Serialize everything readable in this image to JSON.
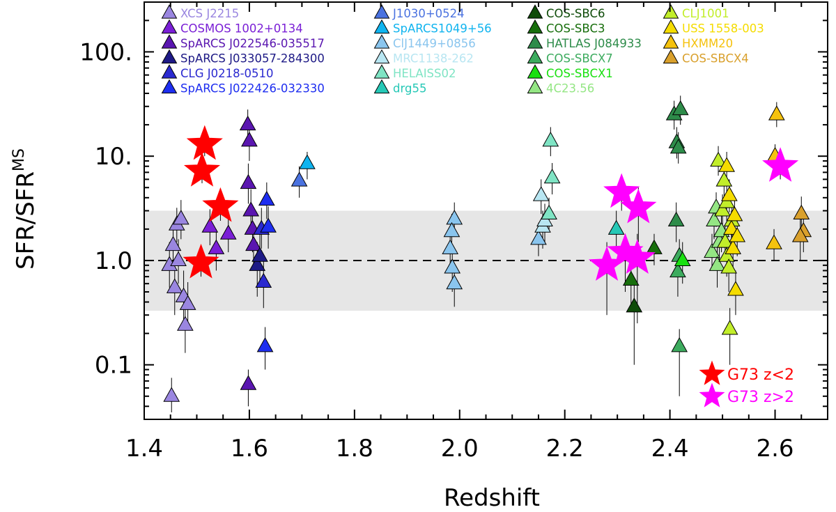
{
  "chart_data": {
    "type": "scatter",
    "xlabel": "Redshift",
    "ylabel": "SFR/SFR",
    "ylabel_sup": "MS",
    "xlim": [
      1.4,
      2.7
    ],
    "ylim": [
      0.03,
      300
    ],
    "yscale": "log",
    "xticks": [
      1.4,
      1.6,
      1.8,
      2.0,
      2.2,
      2.4,
      2.6
    ],
    "xtick_labels": [
      "1.4",
      "1.6",
      "1.8",
      "2.0",
      "2.2",
      "2.4",
      "2.6"
    ],
    "yticks": [
      0.1,
      1.0,
      10,
      100
    ],
    "ytick_labels": [
      "0.1",
      "1.0",
      "10.",
      "100."
    ],
    "reference_line": {
      "y": 1.0,
      "style": "dashed"
    },
    "shaded_band": {
      "y_min": 0.33,
      "y_max": 3.0,
      "color": "#e6e6e6"
    },
    "series": [
      {
        "name": "XCS J2215",
        "color": "#9a86e0",
        "points": [
          {
            "x": 1.452,
            "y": 0.05,
            "lo": 0.035,
            "hi": 0.075
          },
          {
            "x": 1.448,
            "y": 0.9,
            "lo": 0.55,
            "hi": 1.5
          },
          {
            "x": 1.455,
            "y": 1.4,
            "lo": 0.9,
            "hi": 2.2
          },
          {
            "x": 1.458,
            "y": 0.55,
            "lo": 0.3,
            "hi": 0.85
          },
          {
            "x": 1.462,
            "y": 2.2,
            "lo": 1.5,
            "hi": 3.2
          },
          {
            "x": 1.465,
            "y": 1.0,
            "lo": 0.6,
            "hi": 1.6
          },
          {
            "x": 1.47,
            "y": 2.5,
            "lo": 1.6,
            "hi": 3.8
          },
          {
            "x": 1.475,
            "y": 0.45,
            "lo": 0.25,
            "hi": 0.8
          },
          {
            "x": 1.478,
            "y": 0.24,
            "lo": 0.13,
            "hi": 0.4
          },
          {
            "x": 1.483,
            "y": 0.38,
            "lo": 0.22,
            "hi": 0.62
          }
        ]
      },
      {
        "name": "COSMOS 1002+0134",
        "color": "#7a1fd6",
        "points": [
          {
            "x": 1.525,
            "y": 2.1,
            "lo": 1.4,
            "hi": 3.1
          },
          {
            "x": 1.537,
            "y": 1.3,
            "lo": 0.8,
            "hi": 2.0
          },
          {
            "x": 1.56,
            "y": 1.8,
            "lo": 1.2,
            "hi": 2.6
          }
        ]
      },
      {
        "name": "SpARCS J022546-035517",
        "color": "#5a16b0",
        "points": [
          {
            "x": 1.597,
            "y": 20.0,
            "lo": 14.0,
            "hi": 28.0
          },
          {
            "x": 1.6,
            "y": 14.0,
            "lo": 9.0,
            "hi": 20.0
          },
          {
            "x": 1.598,
            "y": 5.5,
            "lo": 3.5,
            "hi": 8.5
          },
          {
            "x": 1.603,
            "y": 3.0,
            "lo": 1.8,
            "hi": 4.8
          },
          {
            "x": 1.606,
            "y": 2.0,
            "lo": 1.2,
            "hi": 3.0
          },
          {
            "x": 1.608,
            "y": 1.4,
            "lo": 0.9,
            "hi": 2.3
          },
          {
            "x": 1.598,
            "y": 0.065,
            "lo": 0.04,
            "hi": 0.09
          }
        ]
      },
      {
        "name": "SpARCS J033057-284300",
        "color": "#1e1a86",
        "points": [
          {
            "x": 1.615,
            "y": 0.9,
            "lo": 0.45,
            "hi": 1.5
          },
          {
            "x": 1.62,
            "y": 1.1,
            "lo": 0.6,
            "hi": 1.8
          }
        ]
      },
      {
        "name": "CLG J0218-0510",
        "color": "#2b2ad0",
        "points": [
          {
            "x": 1.623,
            "y": 2.0,
            "lo": 1.3,
            "hi": 3.2
          },
          {
            "x": 1.627,
            "y": 0.62,
            "lo": 0.35,
            "hi": 1.0
          }
        ]
      },
      {
        "name": "SpARCS J022426-032330",
        "color": "#1e2ef0",
        "points": [
          {
            "x": 1.633,
            "y": 3.8,
            "lo": 2.5,
            "hi": 5.6
          },
          {
            "x": 1.636,
            "y": 2.1,
            "lo": 1.3,
            "hi": 3.3
          },
          {
            "x": 1.63,
            "y": 0.15,
            "lo": 0.09,
            "hi": 0.23
          }
        ]
      },
      {
        "name": "J1030+0524",
        "color": "#4a72e0",
        "points": [
          {
            "x": 1.695,
            "y": 5.8,
            "lo": 4.0,
            "hi": 8.0
          }
        ]
      },
      {
        "name": "SpARCS1049+56",
        "color": "#10b4ef",
        "points": [
          {
            "x": 1.71,
            "y": 8.5,
            "lo": 6.0,
            "hi": 11.0
          }
        ]
      },
      {
        "name": "ClJ1449+0856",
        "color": "#8ac5ee",
        "points": [
          {
            "x": 1.99,
            "y": 2.5,
            "lo": 1.7,
            "hi": 3.6
          },
          {
            "x": 1.985,
            "y": 1.9,
            "lo": 1.2,
            "hi": 2.8
          },
          {
            "x": 1.982,
            "y": 1.3,
            "lo": 0.8,
            "hi": 2.0
          },
          {
            "x": 1.986,
            "y": 0.85,
            "lo": 0.5,
            "hi": 1.3
          },
          {
            "x": 1.99,
            "y": 0.6,
            "lo": 0.36,
            "hi": 0.95
          },
          {
            "x": 2.15,
            "y": 1.6,
            "lo": 1.1,
            "hi": 2.3
          }
        ]
      },
      {
        "name": "MRC1138-262",
        "color": "#b8e6f2",
        "points": [
          {
            "x": 2.155,
            "y": 4.2,
            "lo": 2.8,
            "hi": 6.0
          },
          {
            "x": 2.158,
            "y": 2.1,
            "lo": 1.3,
            "hi": 3.0
          },
          {
            "x": 2.162,
            "y": 2.4,
            "lo": 1.5,
            "hi": 3.5
          }
        ]
      },
      {
        "name": "HELAISS02",
        "color": "#7fe4c4",
        "points": [
          {
            "x": 2.17,
            "y": 2.8,
            "lo": 1.9,
            "hi": 4.0
          },
          {
            "x": 2.173,
            "y": 14.0,
            "lo": 10.0,
            "hi": 19.0
          },
          {
            "x": 2.176,
            "y": 6.2,
            "lo": 4.3,
            "hi": 8.6
          }
        ]
      },
      {
        "name": "drg55",
        "color": "#26c8b6",
        "points": [
          {
            "x": 2.298,
            "y": 2.0,
            "lo": 1.3,
            "hi": 3.0
          }
        ]
      },
      {
        "name": "COS-SBC6",
        "color": "#0e4b08",
        "points": [
          {
            "x": 2.332,
            "y": 0.36,
            "lo": 0.1,
            "hi": 0.6
          }
        ]
      },
      {
        "name": "COS-SBC3",
        "color": "#176e0c",
        "points": [
          {
            "x": 2.326,
            "y": 0.65,
            "lo": 0.35,
            "hi": 1.0
          },
          {
            "x": 2.37,
            "y": 1.3,
            "lo": 0.9,
            "hi": 1.8
          }
        ]
      },
      {
        "name": "HATLAS J084933",
        "color": "#2e8c4a",
        "points": [
          {
            "x": 2.408,
            "y": 25.0,
            "lo": 18.0,
            "hi": 34.0
          },
          {
            "x": 2.413,
            "y": 13.5,
            "lo": 9.5,
            "hi": 19.0
          },
          {
            "x": 2.416,
            "y": 12.0,
            "lo": 8.5,
            "hi": 17.0
          },
          {
            "x": 2.42,
            "y": 28.0,
            "lo": 20.0,
            "hi": 38.0
          },
          {
            "x": 2.412,
            "y": 2.4,
            "lo": 1.5,
            "hi": 3.6
          }
        ]
      },
      {
        "name": "COS-SBCX7",
        "color": "#3cab5e",
        "points": [
          {
            "x": 2.415,
            "y": 0.78,
            "lo": 0.45,
            "hi": 1.2
          },
          {
            "x": 2.418,
            "y": 1.1,
            "lo": 0.7,
            "hi": 1.6
          },
          {
            "x": 2.418,
            "y": 0.15,
            "lo": 0.05,
            "hi": 0.22
          }
        ]
      },
      {
        "name": "COS-SBCX1",
        "color": "#19e010",
        "points": [
          {
            "x": 2.424,
            "y": 1.0,
            "lo": 0.6,
            "hi": 1.5
          }
        ]
      },
      {
        "name": "4C23.56",
        "color": "#94e684",
        "points": [
          {
            "x": 2.48,
            "y": 1.2,
            "lo": 0.8,
            "hi": 1.8
          },
          {
            "x": 2.484,
            "y": 2.4,
            "lo": 1.6,
            "hi": 3.4
          },
          {
            "x": 2.49,
            "y": 0.9,
            "lo": 0.55,
            "hi": 1.4
          },
          {
            "x": 2.488,
            "y": 3.2,
            "lo": 2.1,
            "hi": 4.5
          },
          {
            "x": 2.494,
            "y": 1.5,
            "lo": 1.0,
            "hi": 2.2
          },
          {
            "x": 2.498,
            "y": 1.9,
            "lo": 1.2,
            "hi": 2.8
          }
        ]
      },
      {
        "name": "CLJ1001",
        "color": "#c2ee2a",
        "points": [
          {
            "x": 2.492,
            "y": 9.0,
            "lo": 6.5,
            "hi": 12.5
          },
          {
            "x": 2.5,
            "y": 3.0,
            "lo": 2.0,
            "hi": 4.3
          },
          {
            "x": 2.505,
            "y": 1.5,
            "lo": 1.0,
            "hi": 2.2
          },
          {
            "x": 2.508,
            "y": 1.1,
            "lo": 0.7,
            "hi": 1.6
          },
          {
            "x": 2.512,
            "y": 0.85,
            "lo": 0.5,
            "hi": 1.3
          },
          {
            "x": 2.514,
            "y": 0.22,
            "lo": 0.1,
            "hi": 0.35
          },
          {
            "x": 2.518,
            "y": 2.4,
            "lo": 1.6,
            "hi": 3.5
          },
          {
            "x": 2.503,
            "y": 5.8,
            "lo": 4.0,
            "hi": 8.0
          },
          {
            "x": 2.508,
            "y": 3.6,
            "lo": 2.4,
            "hi": 5.2
          }
        ]
      },
      {
        "name": "USS 1558-003",
        "color": "#f5dc00",
        "points": [
          {
            "x": 2.508,
            "y": 8.0,
            "lo": 5.8,
            "hi": 11.0
          },
          {
            "x": 2.513,
            "y": 4.2,
            "lo": 2.9,
            "hi": 6.0
          },
          {
            "x": 2.517,
            "y": 2.0,
            "lo": 1.3,
            "hi": 3.0
          },
          {
            "x": 2.52,
            "y": 1.3,
            "lo": 0.85,
            "hi": 1.9
          },
          {
            "x": 2.523,
            "y": 2.7,
            "lo": 1.8,
            "hi": 3.9
          },
          {
            "x": 2.525,
            "y": 0.52,
            "lo": 0.3,
            "hi": 0.8
          },
          {
            "x": 2.528,
            "y": 1.7,
            "lo": 1.1,
            "hi": 2.5
          }
        ]
      },
      {
        "name": "HXMM20",
        "color": "#f5c20e",
        "points": [
          {
            "x": 2.603,
            "y": 25.0,
            "lo": 19.0,
            "hi": 33.0
          },
          {
            "x": 2.6,
            "y": 10.0,
            "lo": 7.5,
            "hi": 13.0
          },
          {
            "x": 2.598,
            "y": 1.45,
            "lo": 1.0,
            "hi": 2.0
          }
        ]
      },
      {
        "name": "COS-SBCX4",
        "color": "#d9a02c",
        "points": [
          {
            "x": 2.65,
            "y": 2.8,
            "lo": 1.9,
            "hi": 4.1
          },
          {
            "x": 2.654,
            "y": 1.9,
            "lo": 1.2,
            "hi": 2.8
          },
          {
            "x": 2.648,
            "y": 1.7,
            "lo": 1.0,
            "hi": 2.5
          }
        ]
      }
    ],
    "star_series": [
      {
        "name": "G73 z<2",
        "color": "#ff0000",
        "points": [
          {
            "x": 1.515,
            "y": 13.0,
            "lo": 10.0,
            "hi": 16.0
          },
          {
            "x": 1.51,
            "y": 7.2,
            "lo": 5.5,
            "hi": 9.0
          },
          {
            "x": 1.545,
            "y": 3.3,
            "lo": 2.4,
            "hi": 4.4
          },
          {
            "x": 1.508,
            "y": 0.95,
            "lo": 0.7,
            "hi": 1.2
          }
        ]
      },
      {
        "name": "G73 z>2",
        "color": "#ff00ff",
        "points": [
          {
            "x": 2.308,
            "y": 4.5,
            "lo": 3.0,
            "hi": 6.0
          },
          {
            "x": 2.34,
            "y": 3.2,
            "lo": 1.5,
            "hi": 5.0
          },
          {
            "x": 2.28,
            "y": 0.9,
            "lo": 0.3,
            "hi": 1.5
          },
          {
            "x": 2.315,
            "y": 1.2,
            "lo": 0.5,
            "hi": 1.8
          },
          {
            "x": 2.338,
            "y": 1.05,
            "lo": 0.25,
            "hi": 1.8
          },
          {
            "x": 2.61,
            "y": 8.0,
            "lo": 6.0,
            "hi": 10.0
          }
        ]
      }
    ]
  }
}
